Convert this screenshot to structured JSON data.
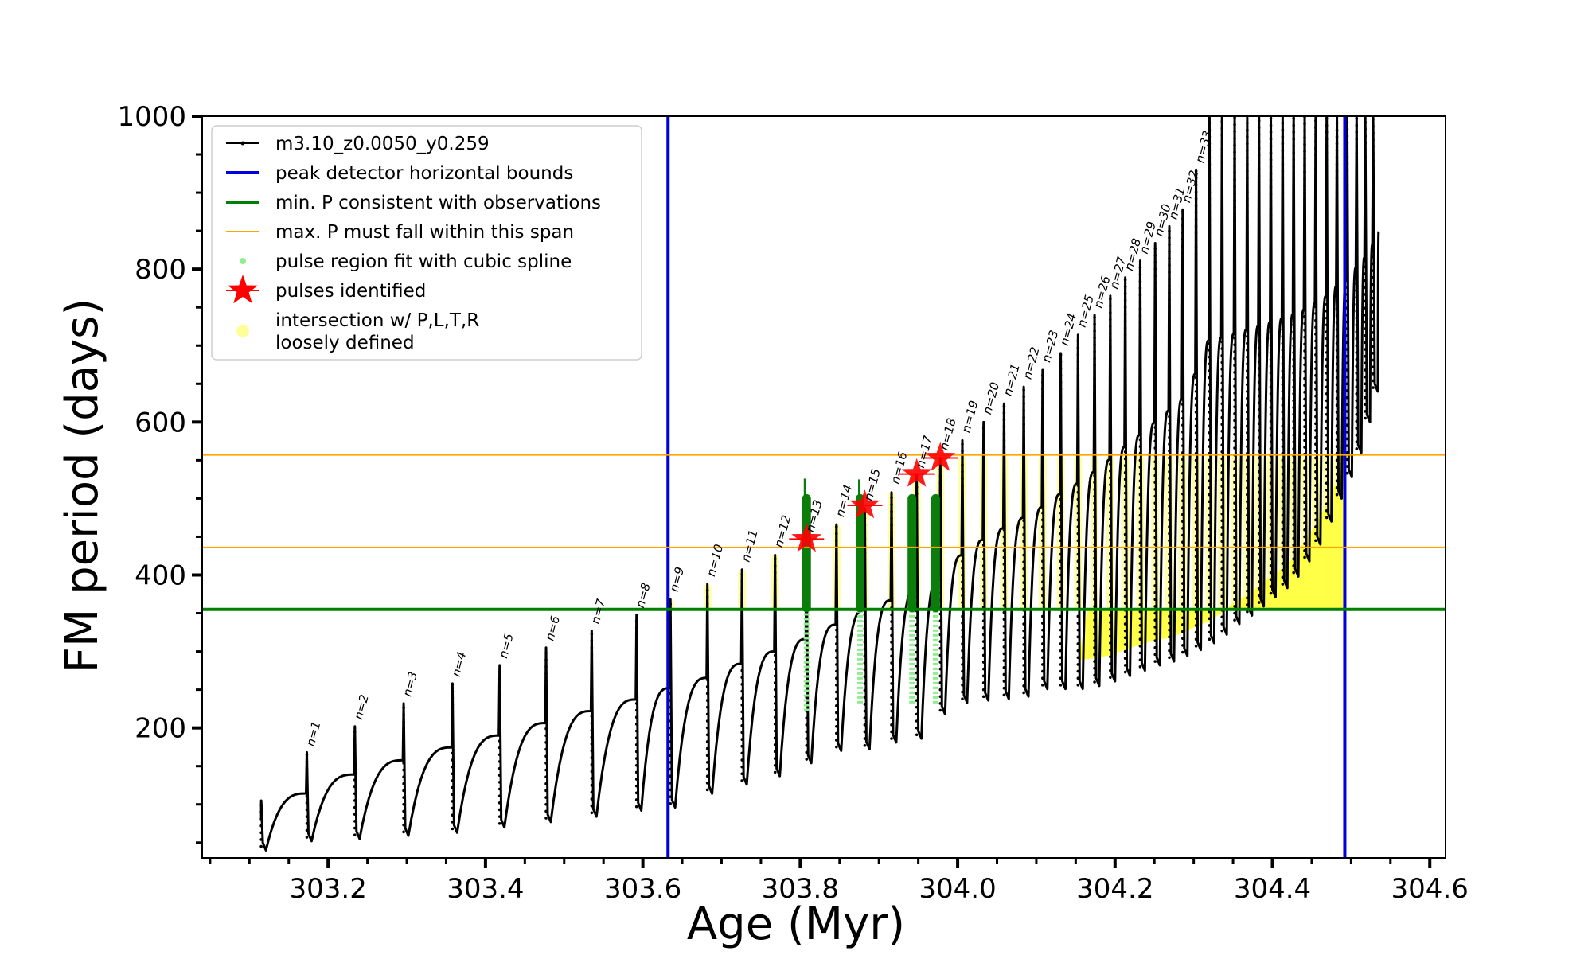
{
  "chart_data": {
    "type": "line",
    "title": "",
    "xlabel": "Age (Myr)",
    "ylabel": "FM period (days)",
    "xlim": [
      303.04,
      304.62
    ],
    "ylim": [
      30,
      1000
    ],
    "xticks": [
      "303.2",
      "303.4",
      "303.6",
      "303.8",
      "304.0",
      "304.2",
      "304.4",
      "304.6"
    ],
    "yticks": [
      "200",
      "400",
      "600",
      "800",
      "1000"
    ],
    "grid": false,
    "legend_position": "upper-left",
    "legend": [
      {
        "label": "m3.10_z0.0050_y0.259",
        "color": "#000000",
        "kind": "line-marker"
      },
      {
        "label": "peak detector horizontal bounds",
        "color": "#0000dd",
        "kind": "line"
      },
      {
        "label": "min. P consistent with observations",
        "color": "#008000",
        "kind": "line"
      },
      {
        "label": "max. P must fall within this span",
        "color": "#ffa500",
        "kind": "thin-line"
      },
      {
        "label": "pulse region fit with cubic spline",
        "color": "#90ee90",
        "kind": "dot"
      },
      {
        "label": "pulses identified",
        "color": "#ff0000",
        "kind": "star"
      },
      {
        "label": "intersection w/ P,L,T,R",
        "color": "#ffff99",
        "kind": "circle"
      },
      {
        "label": "loosely defined",
        "color": "#ffff99",
        "kind": "continuation"
      }
    ],
    "reference_lines": {
      "peak_detector_bounds_x": [
        303.632,
        304.492
      ],
      "min_period_y": 355,
      "max_period_span_y": [
        436,
        557
      ]
    },
    "pulses": {
      "ages": [
        303.115,
        303.173,
        303.234,
        303.296,
        303.358,
        303.418,
        303.477,
        303.535,
        303.592,
        303.635,
        303.682,
        303.726,
        303.768,
        303.808,
        303.846,
        303.882,
        303.916,
        303.948,
        303.978,
        304.006,
        304.033,
        304.059,
        304.084,
        304.108,
        304.131,
        304.153,
        304.174,
        304.194,
        304.213,
        304.232,
        304.251,
        304.269,
        304.286,
        304.303,
        304.32,
        304.336,
        304.352,
        304.368,
        304.383,
        304.398,
        304.413,
        304.427,
        304.441,
        304.455,
        304.469,
        304.482,
        304.495,
        304.507,
        304.518,
        304.528
      ],
      "peak_periods": [
        105,
        168,
        202,
        232,
        258,
        282,
        305,
        327,
        348,
        368,
        388,
        407,
        426,
        446,
        466,
        487,
        508,
        530,
        553,
        576,
        600,
        624,
        646,
        668,
        690,
        714,
        740,
        765,
        789,
        811,
        834,
        856,
        878,
        930,
        1000,
        1000,
        1000,
        1000,
        1000,
        1000,
        1000,
        1000,
        1000,
        1000,
        1000,
        1000,
        1000,
        1000,
        1000,
        1000
      ],
      "trough_periods": [
        40,
        52,
        55,
        59,
        63,
        70,
        77,
        84,
        92,
        96,
        114,
        126,
        137,
        154,
        170,
        172,
        181,
        186,
        218,
        233,
        236,
        238,
        241,
        251,
        251,
        251,
        255,
        261,
        268,
        275,
        282,
        287,
        294,
        302,
        311,
        322,
        336,
        347,
        359,
        371,
        383,
        398,
        418,
        440,
        470,
        500,
        528,
        560,
        600,
        640
      ],
      "labels": [
        "n=1",
        "n=2",
        "n=3",
        "n=4",
        "n=5",
        "n=6",
        "n=7",
        "n=8",
        "n=9",
        "n=10",
        "n=11",
        "n=12",
        "n=13",
        "n=14",
        "n=15",
        "n=16",
        "n=17",
        "n=18",
        "n=19",
        "n=20",
        "n=21",
        "n=22",
        "n=23",
        "n=24",
        "n=25",
        "n=26",
        "n=27",
        "n=28",
        "n=29",
        "n=30",
        "n=31",
        "n=32",
        "n=33"
      ],
      "label_positions": [
        {
          "x": 303.176,
          "y": 173
        },
        {
          "x": 303.237,
          "y": 208
        },
        {
          "x": 303.299,
          "y": 238
        },
        {
          "x": 303.361,
          "y": 264
        },
        {
          "x": 303.421,
          "y": 288
        },
        {
          "x": 303.48,
          "y": 311
        },
        {
          "x": 303.538,
          "y": 333
        },
        {
          "x": 303.595,
          "y": 354
        },
        {
          "x": 303.638,
          "y": 375
        },
        {
          "x": 303.685,
          "y": 395
        },
        {
          "x": 303.729,
          "y": 414
        },
        {
          "x": 303.771,
          "y": 433
        },
        {
          "x": 303.811,
          "y": 453
        },
        {
          "x": 303.849,
          "y": 473
        },
        {
          "x": 303.885,
          "y": 494
        },
        {
          "x": 303.919,
          "y": 516
        },
        {
          "x": 303.951,
          "y": 537
        },
        {
          "x": 303.981,
          "y": 560
        },
        {
          "x": 304.009,
          "y": 583
        },
        {
          "x": 304.036,
          "y": 607
        },
        {
          "x": 304.062,
          "y": 631
        },
        {
          "x": 304.087,
          "y": 653
        },
        {
          "x": 304.111,
          "y": 675
        },
        {
          "x": 304.134,
          "y": 697
        },
        {
          "x": 304.156,
          "y": 721
        },
        {
          "x": 304.177,
          "y": 746
        },
        {
          "x": 304.197,
          "y": 771
        },
        {
          "x": 304.216,
          "y": 795
        },
        {
          "x": 304.235,
          "y": 817
        },
        {
          "x": 304.254,
          "y": 840
        },
        {
          "x": 304.272,
          "y": 862
        },
        {
          "x": 304.289,
          "y": 884
        },
        {
          "x": 304.306,
          "y": 936
        }
      ]
    },
    "identified_pulses": [
      {
        "age": 303.808,
        "period": 447
      },
      {
        "age": 303.882,
        "period": 491
      },
      {
        "age": 303.948,
        "period": 532
      },
      {
        "age": 303.978,
        "period": 553
      }
    ],
    "spline_regions": [
      {
        "age": 303.808,
        "period_range": [
          222,
          500
        ],
        "dense_range": [
          357,
          500
        ]
      },
      {
        "age": 303.876,
        "period_range": [
          232,
          500
        ],
        "dense_range": [
          357,
          500
        ]
      },
      {
        "age": 303.942,
        "period_range": [
          232,
          500
        ],
        "dense_range": [
          357,
          500
        ]
      },
      {
        "age": 303.972,
        "period_range": [
          232,
          500
        ],
        "dense_range": [
          357,
          500
        ]
      }
    ]
  }
}
